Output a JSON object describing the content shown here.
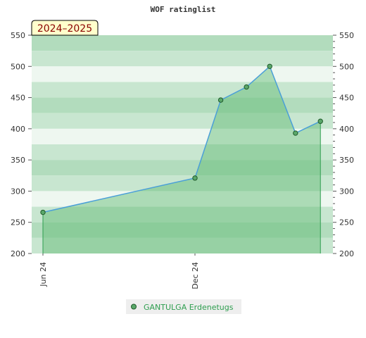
{
  "colors": {
    "band_light": "#eef7f0",
    "band_mid": "#c8e6d0",
    "band_dark": "#b2dcbd",
    "area_fill": "#5cb86f",
    "line": "#4a9fd8",
    "drop_line": "#2e9e4f",
    "marker_fill": "#5aa86a",
    "marker_stroke": "#1f5a2a",
    "season_badge_bg": "#ffffcc",
    "legend_bg": "#eeeeee"
  },
  "chart_data": {
    "type": "area",
    "title": "WOF ratinglist",
    "season_label": "2024–2025",
    "x_dates": [
      "2024-06-01",
      "2024-12-01",
      "2025-01-01",
      "2025-02-01",
      "2025-03-01",
      "2025-04-01",
      "2025-05-01"
    ],
    "x_tick_labels": [
      {
        "date": "2024-06-01",
        "label": "Jun 24"
      },
      {
        "date": "2024-12-01",
        "label": "Dec 24"
      }
    ],
    "series": [
      {
        "name": "GANTULGA Erdenetugs",
        "values": [
          266,
          321,
          446,
          467,
          500,
          393,
          412
        ]
      }
    ],
    "ylim": [
      200,
      550
    ],
    "y_ticks": [
      200,
      250,
      300,
      350,
      400,
      450,
      500,
      550
    ],
    "right_axis": true,
    "grid": "horizontal bands",
    "legend_position": "bottom"
  }
}
